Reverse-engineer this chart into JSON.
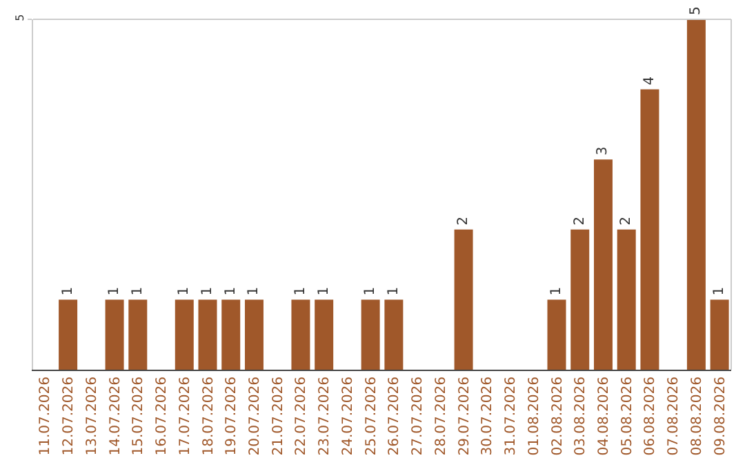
{
  "chart_data": {
    "type": "bar",
    "categories": [
      "11.07.2026",
      "12.07.2026",
      "13.07.2026",
      "14.07.2026",
      "15.07.2026",
      "16.07.2026",
      "17.07.2026",
      "18.07.2026",
      "19.07.2026",
      "20.07.2026",
      "21.07.2026",
      "22.07.2026",
      "23.07.2026",
      "24.07.2026",
      "25.07.2026",
      "26.07.2026",
      "27.07.2026",
      "28.07.2026",
      "29.07.2026",
      "30.07.2026",
      "31.07.2026",
      "01.08.2026",
      "02.08.2026",
      "03.08.2026",
      "04.08.2026",
      "05.08.2026",
      "06.08.2026",
      "07.08.2026",
      "08.08.2026",
      "09.08.2026"
    ],
    "values": [
      0,
      1,
      0,
      1,
      1,
      0,
      1,
      1,
      1,
      1,
      0,
      1,
      1,
      0,
      1,
      1,
      0,
      0,
      2,
      0,
      0,
      0,
      1,
      2,
      3,
      2,
      4,
      0,
      5,
      1
    ],
    "value_labels": [
      null,
      "1",
      null,
      "1",
      "1",
      null,
      "1",
      "1",
      "1",
      "1",
      null,
      "1",
      "1",
      null,
      "1",
      "1",
      null,
      null,
      "2",
      null,
      null,
      null,
      "1",
      "2",
      "3",
      "2",
      "4",
      null,
      "5",
      "1"
    ],
    "color": "#a0582a",
    "ylim": [
      0,
      5
    ],
    "yticks": [
      5
    ]
  }
}
